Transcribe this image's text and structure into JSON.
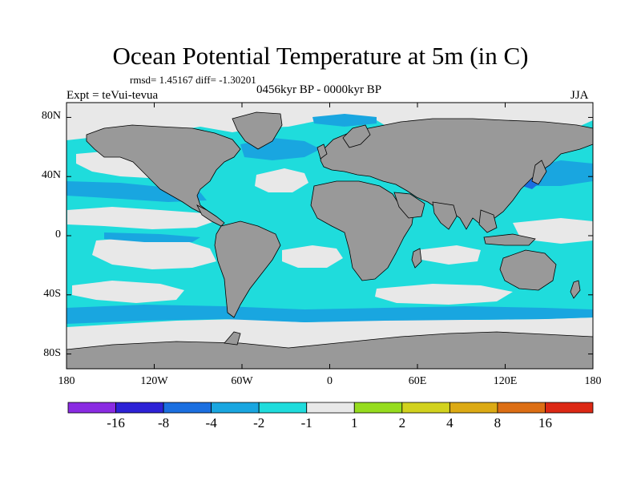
{
  "title": "Ocean Potential Temperature at 5m (in C)",
  "stats": "rmsd= 1.45167 diff= -1.30201",
  "experiment": "Expt = teVui-tevua",
  "period": "0456kyr BP - 0000kyr BP",
  "season": "JJA",
  "y_axis": {
    "ticks": [
      {
        "label": "80N",
        "lat": 80
      },
      {
        "label": "40N",
        "lat": 40
      },
      {
        "label": "0",
        "lat": 0
      },
      {
        "label": "40S",
        "lat": -40
      },
      {
        "label": "80S",
        "lat": -80
      }
    ]
  },
  "x_axis": {
    "ticks": [
      {
        "label": "180",
        "lon": -180
      },
      {
        "label": "120W",
        "lon": -120
      },
      {
        "label": "60W",
        "lon": -60
      },
      {
        "label": "0",
        "lon": 0
      },
      {
        "label": "60E",
        "lon": 60
      },
      {
        "label": "120E",
        "lon": 120
      },
      {
        "label": "180",
        "lon": 180
      }
    ]
  },
  "colorbar": {
    "labels": [
      "-16",
      "-8",
      "-4",
      "-2",
      "-1",
      "1",
      "2",
      "4",
      "8",
      "16"
    ],
    "colors": [
      "#8a2be2",
      "#2d22d6",
      "#1b6fe0",
      "#19a6e0",
      "#1fdcdc",
      "#e8e8e8",
      "#96dc1e",
      "#d2d21e",
      "#dcaa14",
      "#dc6e14",
      "#dc2814"
    ]
  },
  "map_colors": {
    "land": "#999999",
    "neutral": "#e8e8e8",
    "cool_light": "#1fdcdc",
    "cool_medium": "#19a6e0",
    "cool_strong": "#1b6fe0"
  }
}
